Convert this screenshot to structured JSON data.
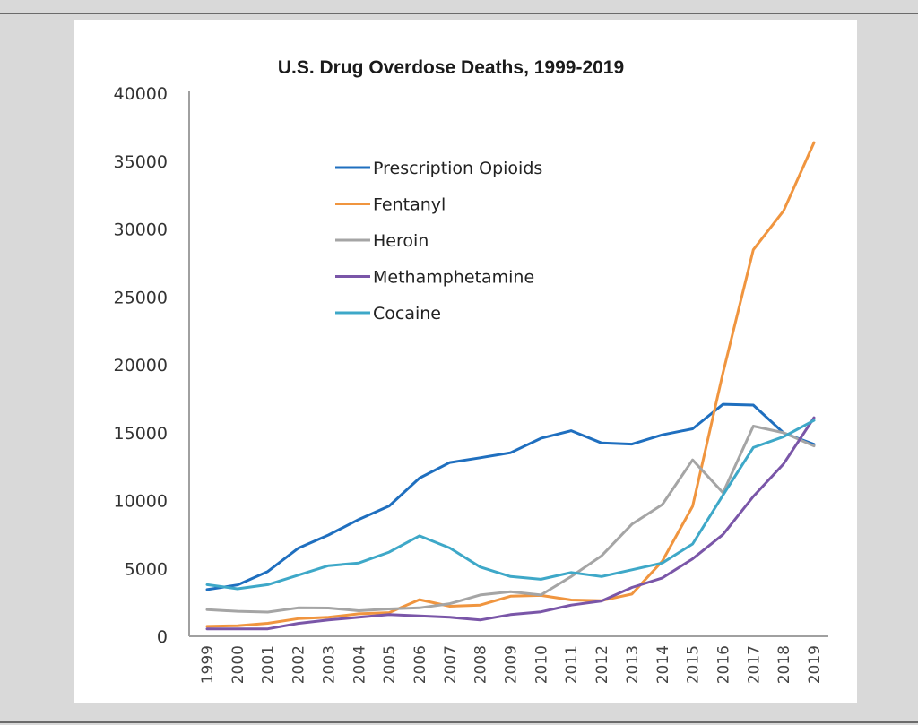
{
  "chart_data": {
    "type": "line",
    "title": "U.S. Drug Overdose Deaths, 1999-2019",
    "xlabel": "",
    "ylabel": "",
    "ylim": [
      0,
      40000
    ],
    "yticks": [
      "0",
      "5000",
      "10000",
      "15000",
      "20000",
      "25000",
      "30000",
      "35000",
      "40000"
    ],
    "ytick_values": [
      0,
      5000,
      10000,
      15000,
      20000,
      25000,
      30000,
      35000,
      40000
    ],
    "x": [
      "1999",
      "2000",
      "2001",
      "2002",
      "2003",
      "2004",
      "2005",
      "2006",
      "2007",
      "2008",
      "2009",
      "2010",
      "2011",
      "2012",
      "2013",
      "2014",
      "2015",
      "2016",
      "2017",
      "2018",
      "2019"
    ],
    "grid": false,
    "legend_position": "top-center",
    "series": [
      {
        "name": "Prescription Opioids",
        "color": "#1f6fbf",
        "values": [
          3442,
          3785,
          4770,
          6480,
          7460,
          8610,
          9600,
          11650,
          12800,
          13150,
          13520,
          14580,
          15140,
          14240,
          14150,
          14840,
          15280,
          17090,
          17030,
          14980,
          14140
        ]
      },
      {
        "name": "Fentanyl",
        "color": "#f0953f",
        "values": [
          730,
          780,
          960,
          1300,
          1400,
          1660,
          1740,
          2700,
          2210,
          2300,
          2950,
          3010,
          2670,
          2630,
          3110,
          5540,
          9580,
          19410,
          28470,
          31340,
          36360
        ]
      },
      {
        "name": "Heroin",
        "color": "#a5a5a5",
        "values": [
          1960,
          1840,
          1780,
          2090,
          2080,
          1880,
          2010,
          2090,
          2400,
          3040,
          3280,
          3040,
          4400,
          5930,
          8260,
          9700,
          12990,
          10570,
          15480,
          14990,
          14020
        ]
      },
      {
        "name": "Methamphetamine",
        "color": "#7a56a8",
        "values": [
          550,
          550,
          550,
          950,
          1200,
          1400,
          1600,
          1500,
          1400,
          1200,
          1600,
          1800,
          2300,
          2600,
          3600,
          4300,
          5700,
          7500,
          10300,
          12700,
          16100
        ]
      },
      {
        "name": "Cocaine",
        "color": "#3ea8c8",
        "values": [
          3800,
          3500,
          3800,
          4500,
          5200,
          5400,
          6200,
          7400,
          6500,
          5100,
          4400,
          4200,
          4700,
          4400,
          4900,
          5400,
          6800,
          10400,
          13900,
          14700,
          15900
        ]
      }
    ]
  }
}
